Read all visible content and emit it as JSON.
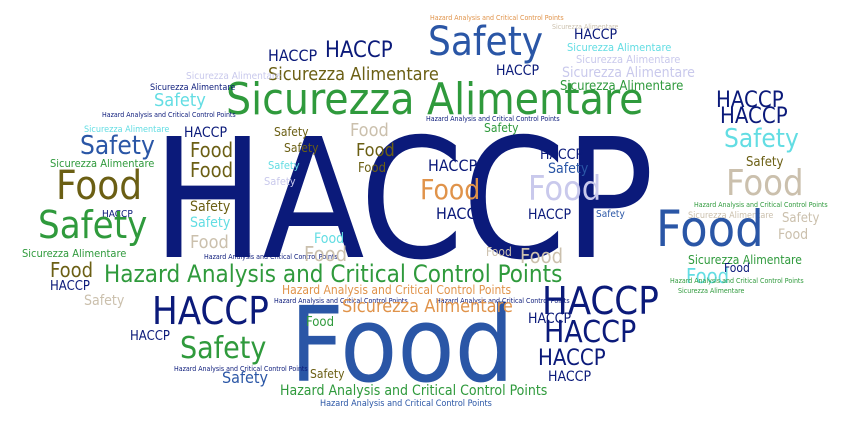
{
  "word_cloud": {
    "words": [
      "HACCP",
      "Food",
      "Safety",
      "Sicurezza Alimentare",
      "Hazard Analysis and Critical Control Points"
    ]
  }
}
